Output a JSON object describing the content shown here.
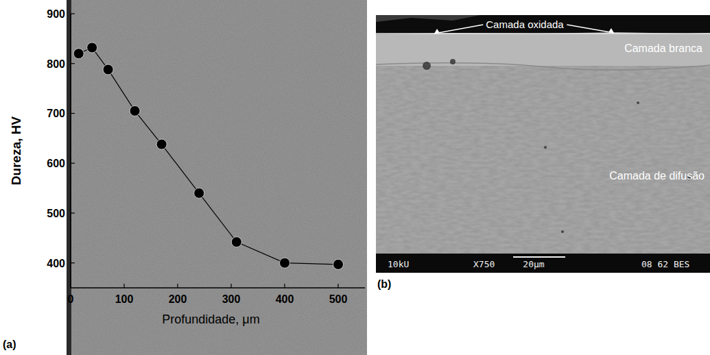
{
  "chart_data": {
    "type": "line",
    "x_label": "Profundidade, μm",
    "y_label": "Dureza, HV",
    "annotations": [
      "(a)"
    ],
    "x": [
      15,
      40,
      70,
      120,
      170,
      240,
      310,
      400,
      500
    ],
    "values": [
      820,
      832,
      788,
      705,
      638,
      540,
      442,
      400,
      397
    ],
    "xlim": [
      0,
      550
    ],
    "ylim": [
      350,
      900
    ],
    "xticks": [
      0,
      100,
      200,
      300,
      400,
      500
    ],
    "yticks": [
      400,
      500,
      600,
      700,
      800,
      900
    ],
    "color": "#000000",
    "marker": "circle",
    "line_style": "solid",
    "grid": false
  },
  "micrograph": {
    "label": "(b)",
    "layers": [
      "Camada oxidada",
      "Camada branca",
      "Camada de difusão"
    ],
    "info_bar": [
      "10kU",
      "X750",
      "20μm",
      "08 62 BES"
    ]
  }
}
